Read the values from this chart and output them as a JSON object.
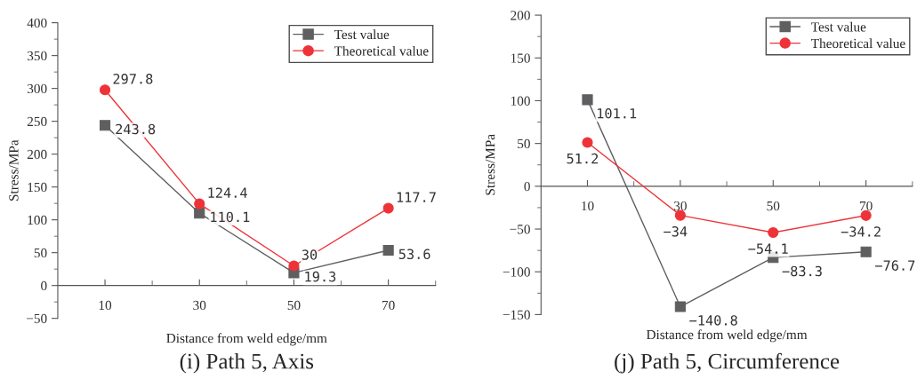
{
  "chart_data": [
    {
      "type": "line",
      "title": "(i) Path 5, Axis",
      "xlabel": "Distance from weld edge/mm",
      "ylabel": "Stress/MPa",
      "x": [
        10,
        30,
        50,
        70
      ],
      "series": [
        {
          "name": "Test value",
          "color": "#5f5f61",
          "marker": "square",
          "values": [
            243.8,
            110.1,
            19.3,
            53.6
          ]
        },
        {
          "name": "Theoretical value",
          "color": "#ee3338",
          "marker": "circle",
          "values": [
            297.8,
            124.4,
            30,
            117.7
          ]
        }
      ],
      "xlim": [
        0,
        80
      ],
      "xticks": [
        10,
        {
          "value": 20,
          "label": null
        },
        30,
        {
          "value": 40,
          "label": null
        },
        50,
        {
          "value": 60,
          "label": null
        },
        70,
        {
          "value": 80,
          "label": null
        }
      ],
      "ylim": [
        -50,
        400
      ],
      "yticks": [
        -50,
        {
          "value": -25,
          "label": null
        },
        0,
        {
          "value": 25,
          "label": null
        },
        50,
        {
          "value": 75,
          "label": null
        },
        100,
        {
          "value": 125,
          "label": null
        },
        150,
        {
          "value": 175,
          "label": null
        },
        200,
        {
          "value": 225,
          "label": null
        },
        250,
        {
          "value": 275,
          "label": null
        },
        300,
        {
          "value": 325,
          "label": null
        },
        350,
        {
          "value": 375,
          "label": null
        },
        400
      ],
      "data_labels": true,
      "legend": "top right",
      "grid": false,
      "line_style": "solid"
    },
    {
      "type": "line",
      "title": "(j) Path 5, Circumference",
      "xlabel": "Distance from weld edge/mm",
      "ylabel": "Stress/MPa",
      "x": [
        10,
        30,
        50,
        70
      ],
      "series": [
        {
          "name": "Test value",
          "color": "#5f5f61",
          "marker": "square",
          "values": [
            101.1,
            -140.8,
            -83.3,
            -76.7
          ]
        },
        {
          "name": "Theoretical value",
          "color": "#ee3338",
          "marker": "circle",
          "values": [
            51.2,
            -34,
            -54.1,
            -34.2
          ]
        }
      ],
      "xlim": [
        0,
        80
      ],
      "xticks": [
        10,
        {
          "value": 20,
          "label": null
        },
        30,
        {
          "value": 40,
          "label": null
        },
        50,
        {
          "value": 60,
          "label": null
        },
        70,
        {
          "value": 80,
          "label": null
        }
      ],
      "ylim": [
        -150,
        200
      ],
      "yticks": [
        -150,
        {
          "value": -125,
          "label": null
        },
        -100,
        {
          "value": -75,
          "label": null
        },
        -50,
        {
          "value": -25,
          "label": null
        },
        0,
        {
          "value": 25,
          "label": null
        },
        50,
        {
          "value": 75,
          "label": null
        },
        100,
        {
          "value": 125,
          "label": null
        },
        150,
        {
          "value": 175,
          "label": null
        },
        200
      ],
      "data_labels": true,
      "legend": "top right",
      "grid": false,
      "line_style": "solid"
    }
  ]
}
